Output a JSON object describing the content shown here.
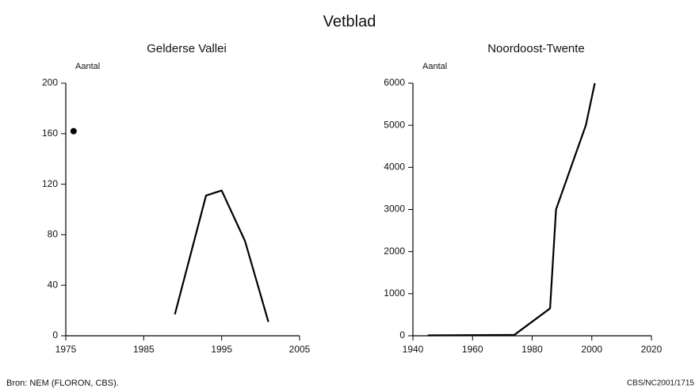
{
  "title": "Vetblad",
  "source": "Bron: NEM (FLORON, CBS).",
  "code": "CBS/NC2001/1715",
  "chart_data": [
    {
      "type": "line",
      "title": "Gelderse Vallei",
      "y_label": "Aantal",
      "x": [
        1976,
        null,
        1989,
        1993,
        1995,
        1998,
        2001
      ],
      "series": [
        {
          "color": "#000000",
          "values": [
            162,
            null,
            17,
            111,
            115,
            75,
            11
          ]
        }
      ],
      "xlim": [
        1975,
        2005
      ],
      "xticks": [
        1975,
        1985,
        1995,
        2005
      ],
      "ylim": [
        0,
        200
      ],
      "yticks": [
        0,
        40,
        80,
        120,
        160,
        200
      ]
    },
    {
      "type": "line",
      "title": "Noordoost-Twente",
      "y_label": "Aantal",
      "x": [
        1945,
        1974,
        1986,
        1988,
        1998,
        2001
      ],
      "series": [
        {
          "color": "#000000",
          "values": [
            10,
            20,
            650,
            3000,
            5000,
            6000
          ]
        }
      ],
      "xlim": [
        1940,
        2020
      ],
      "xticks": [
        1940,
        1960,
        1980,
        2000,
        2020
      ],
      "ylim": [
        0,
        6000
      ],
      "yticks": [
        0,
        1000,
        2000,
        3000,
        4000,
        5000,
        6000
      ]
    }
  ]
}
